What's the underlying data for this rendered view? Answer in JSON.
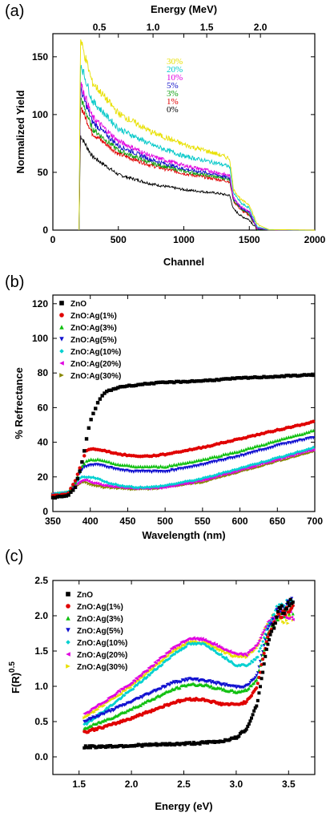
{
  "chart_data": [
    {
      "panel": "(a)",
      "type": "line",
      "xlabel": "Channel",
      "ylabel": "Normalized Yield",
      "xlim": [
        0,
        2000
      ],
      "ylim": [
        0,
        170
      ],
      "x_ticks": [
        "0",
        "500",
        "1000",
        "1500",
        "2000"
      ],
      "y_ticks": [
        "0",
        "50",
        "100",
        "150"
      ],
      "top_axis": {
        "label": "Energy (MeV)",
        "ticks": [
          "0.5",
          "1.0",
          "1.5",
          "2.0"
        ],
        "tick_values": [
          0.5,
          1.0,
          1.5,
          2.0
        ]
      },
      "grid": false,
      "legend_position": "upper-middle",
      "x": [
        200,
        210,
        300,
        500,
        750,
        1000,
        1250,
        1350,
        1380,
        1440,
        1500,
        1560,
        1650,
        2000
      ],
      "series": [
        {
          "name": "30%",
          "color": "#e8e000",
          "values": [
            0,
            165,
            128,
            101,
            85,
            74,
            66,
            62,
            35,
            26,
            22,
            5,
            0.5,
            0
          ]
        },
        {
          "name": "20%",
          "color": "#00c8c8",
          "values": [
            0,
            145,
            112,
            88,
            74,
            64,
            58,
            55,
            32,
            23,
            19,
            3,
            0.3,
            0
          ]
        },
        {
          "name": "10%",
          "color": "#e000e0",
          "values": [
            0,
            128,
            98,
            77,
            64,
            56,
            50,
            47,
            28,
            20,
            16,
            2,
            0.2,
            0
          ]
        },
        {
          "name": "5%",
          "color": "#1010c8",
          "values": [
            0,
            122,
            94,
            73,
            61,
            53,
            48,
            45,
            27,
            19,
            15,
            1.5,
            0.2,
            0
          ]
        },
        {
          "name": "3%",
          "color": "#10a010",
          "values": [
            0,
            115,
            88,
            69,
            58,
            51,
            46,
            44,
            26,
            18,
            14,
            1,
            0.1,
            0
          ]
        },
        {
          "name": "1%",
          "color": "#e00000",
          "values": [
            0,
            108,
            84,
            66,
            56,
            49,
            44,
            42,
            25,
            17,
            13,
            1,
            0.1,
            0
          ]
        },
        {
          "name": "0%",
          "color": "#000000",
          "values": [
            0,
            82,
            64,
            48,
            40,
            35,
            32,
            30,
            18,
            12,
            9,
            0.5,
            0,
            0
          ]
        }
      ]
    },
    {
      "panel": "(b)",
      "type": "scatter",
      "xlabel": "Wavelength (nm)",
      "ylabel": "% Refrectance",
      "xlim": [
        350,
        700
      ],
      "ylim": [
        0,
        125
      ],
      "x_ticks": [
        "350",
        "400",
        "450",
        "500",
        "550",
        "600",
        "650",
        "700"
      ],
      "y_ticks": [
        "0",
        "20",
        "40",
        "60",
        "80",
        "100",
        "120"
      ],
      "grid": false,
      "legend_position": "top-left",
      "x": [
        350,
        370,
        380,
        385,
        390,
        395,
        400,
        410,
        420,
        440,
        460,
        480,
        500,
        550,
        600,
        650,
        700
      ],
      "series": [
        {
          "name": "ZnO",
          "color": "#000000",
          "marker": "square",
          "values": [
            8,
            9,
            14,
            22,
            30,
            42,
            52,
            63,
            69,
            72,
            73,
            74,
            74.5,
            75.5,
            77,
            78,
            79
          ]
        },
        {
          "name": "ZnO:Ag(1%)",
          "color": "#e00000",
          "marker": "circle",
          "values": [
            9,
            10,
            18,
            24,
            30,
            35,
            36,
            36,
            35,
            33,
            32,
            32,
            33,
            37,
            42,
            47,
            52
          ]
        },
        {
          "name": "ZnO:Ag(3%)",
          "color": "#10c010",
          "marker": "triangle-up",
          "values": [
            9,
            10,
            17,
            22,
            27,
            29,
            30,
            30,
            29,
            27,
            26,
            26,
            26,
            30,
            35,
            41,
            47
          ]
        },
        {
          "name": "ZnO:Ag(5%)",
          "color": "#1010d0",
          "marker": "triangle-down",
          "values": [
            9,
            10,
            16,
            21,
            25,
            26,
            27,
            27,
            26,
            24,
            23,
            23,
            23,
            27,
            32,
            38,
            43
          ]
        },
        {
          "name": "ZnO:Ag(10%)",
          "color": "#00d0d0",
          "marker": "diamond",
          "values": [
            10,
            11,
            16,
            19,
            20,
            20,
            20,
            19,
            17,
            15,
            14,
            14,
            15,
            19,
            25,
            31,
            37
          ]
        },
        {
          "name": "ZnO:Ag(20%)",
          "color": "#e000e0",
          "marker": "triangle-left",
          "values": [
            10,
            11,
            15,
            17,
            18,
            18,
            17,
            16,
            15,
            14,
            13.5,
            13.5,
            14,
            18,
            24,
            30,
            36
          ]
        },
        {
          "name": "ZnO:Ag(30%)",
          "color": "#888800",
          "marker": "triangle-right",
          "values": [
            10,
            11,
            14,
            16,
            17,
            17,
            16,
            15,
            14,
            13.5,
            13,
            13,
            14,
            17,
            23,
            29,
            35
          ]
        }
      ]
    },
    {
      "panel": "(c)",
      "type": "scatter",
      "xlabel": "Energy (eV)",
      "ylabel": "F(R)",
      "ylabel_superscript": "0.5",
      "xlim": [
        1.25,
        3.75
      ],
      "ylim": [
        -0.25,
        2.5
      ],
      "x_ticks": [
        "1.5",
        "2.0",
        "2.5",
        "3.0",
        "3.5"
      ],
      "y_ticks": [
        "0.0",
        "0.5",
        "1.0",
        "1.5",
        "2.0",
        "2.5"
      ],
      "grid": false,
      "legend_position": "top-left",
      "x": [
        1.55,
        1.8,
        2.0,
        2.2,
        2.4,
        2.55,
        2.7,
        2.85,
        3.0,
        3.1,
        3.2,
        3.3,
        3.4,
        3.5,
        3.55
      ],
      "series": [
        {
          "name": "ZnO",
          "color": "#000000",
          "marker": "square",
          "values": [
            0.14,
            0.15,
            0.16,
            0.17,
            0.18,
            0.19,
            0.2,
            0.22,
            0.27,
            0.4,
            0.75,
            1.6,
            2.05,
            2.15,
            2.2
          ]
        },
        {
          "name": "ZnO:Ag(1%)",
          "color": "#e00000",
          "marker": "circle",
          "values": [
            0.35,
            0.45,
            0.55,
            0.66,
            0.77,
            0.82,
            0.81,
            0.75,
            0.74,
            0.78,
            1.0,
            1.7,
            2.0,
            2.1,
            2.1
          ]
        },
        {
          "name": "ZnO:Ag(3%)",
          "color": "#10c010",
          "marker": "triangle-up",
          "values": [
            0.4,
            0.55,
            0.68,
            0.82,
            0.96,
            1.03,
            1.02,
            0.96,
            0.92,
            0.95,
            1.1,
            1.75,
            2.0,
            2.1,
            2.1
          ]
        },
        {
          "name": "ZnO:Ag(5%)",
          "color": "#1010d0",
          "marker": "triangle-down",
          "values": [
            0.5,
            0.65,
            0.78,
            0.92,
            1.05,
            1.1,
            1.08,
            1.03,
            0.99,
            1.0,
            1.15,
            1.8,
            2.05,
            2.15,
            2.2
          ]
        },
        {
          "name": "ZnO:Ag(10%)",
          "color": "#00d0d0",
          "marker": "diamond",
          "values": [
            0.45,
            0.72,
            0.95,
            1.2,
            1.45,
            1.6,
            1.6,
            1.45,
            1.3,
            1.3,
            1.4,
            1.85,
            2.1,
            2.2,
            2.2
          ]
        },
        {
          "name": "ZnO:Ag(20%)",
          "color": "#e000e0",
          "marker": "triangle-left",
          "values": [
            0.6,
            0.85,
            1.05,
            1.3,
            1.55,
            1.68,
            1.66,
            1.55,
            1.45,
            1.45,
            1.6,
            1.9,
            2.05,
            2.0,
            1.95
          ]
        },
        {
          "name": "ZnO:Ag(30%)",
          "color": "#e8e000",
          "marker": "triangle-right",
          "values": [
            0.55,
            0.8,
            1.0,
            1.25,
            1.5,
            1.63,
            1.62,
            1.52,
            1.42,
            1.42,
            1.55,
            1.88,
            2.0,
            1.95,
            1.9
          ]
        }
      ]
    }
  ]
}
